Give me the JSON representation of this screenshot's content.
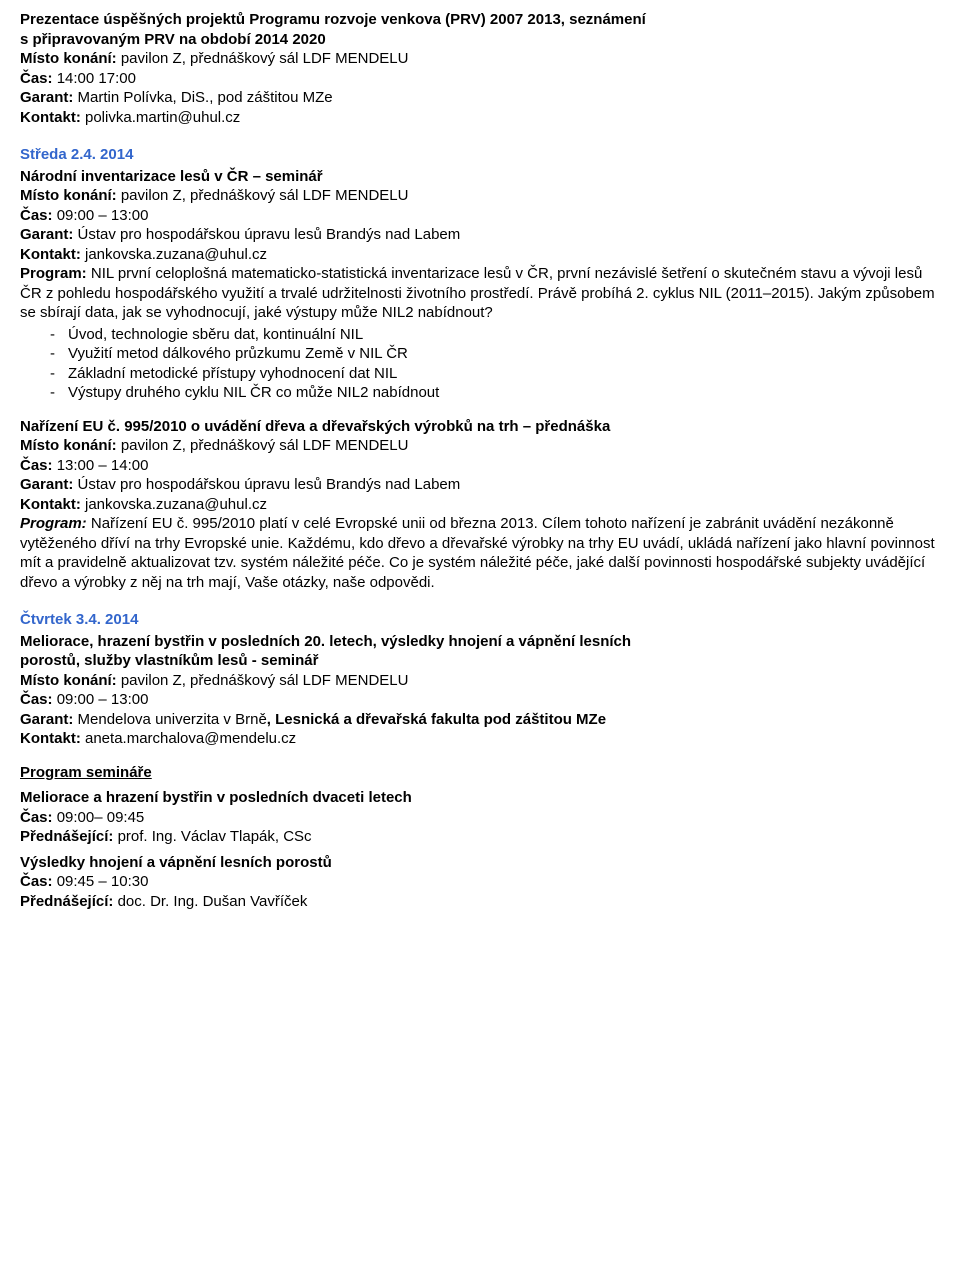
{
  "colors": {
    "heading": "#3366cc",
    "text": "#000000",
    "background": "#ffffff"
  },
  "labels": {
    "venue": "Místo konání:",
    "time": "Čas:",
    "garant": "Garant:",
    "kontakt": "Kontakt:",
    "program": "Program:",
    "program_italic": "Program:",
    "prednasejici": "Přednášející:"
  },
  "e1": {
    "title1": "Prezentace úspěšných projektů Programu rozvoje venkova (PRV) 2007 2013, seznámení",
    "title2": "s připravovaným PRV na období 2014 2020",
    "venue": "pavilon Z, přednáškový sál LDF MENDELU",
    "time": "14:00 17:00",
    "garant": "Martin Polívka, DiS., pod záštitou MZe",
    "kontakt": "polivka.martin@uhul.cz"
  },
  "day1": "Středa 2.4. 2014",
  "e2": {
    "title": "Národní inventarizace lesů v ČR – seminář",
    "venue": "pavilon Z, přednáškový sál LDF MENDELU",
    "time": "09:00 – 13:00",
    "garant": "Ústav pro hospodářskou úpravu lesů Brandýs nad Labem",
    "kontakt": "jankovska.zuzana@uhul.cz",
    "program": "NIL první celoplošná matematicko-statistická inventarizace lesů v ČR, první nezávislé šetření o skutečném stavu a vývoji lesů ČR z pohledu hospodářského využití a trvalé udržitelnosti životního prostředí. Právě probíhá 2. cyklus NIL (2011–2015). Jakým způsobem se sbírají data, jak se vyhodnocují, jaké výstupy může NIL2 nabídnout?",
    "bullets": [
      "Úvod, technologie sběru dat, kontinuální NIL",
      "Využití metod dálkového průzkumu Země v NIL ČR",
      "Základní metodické přístupy vyhodnocení dat NIL",
      "Výstupy druhého cyklu NIL ČR co může NIL2  nabídnout"
    ]
  },
  "e3": {
    "title": "Nařízení EU č. 995/2010 o uvádění dřeva a dřevařských výrobků na trh – přednáška",
    "venue": "pavilon Z, přednáškový sál LDF MENDELU",
    "time": "13:00 – 14:00",
    "garant": "Ústav pro hospodářskou úpravu lesů Brandýs nad Labem",
    "kontakt": "jankovska.zuzana@uhul.cz",
    "program": "Nařízení EU č. 995/2010 platí v celé Evropské unii od března 2013. Cílem tohoto nařízení je zabránit uvádění nezákonně vytěženého dříví na trhy Evropské unie. Každému, kdo dřevo a dřevařské výrobky na trhy EU uvádí, ukládá nařízení jako hlavní povinnost mít a pravidelně aktualizovat tzv. systém náležité péče. Co je systém náležité péče, jaké další povinnosti hospodářské subjekty uvádějící dřevo a výrobky z něj na trh mají, Vaše otázky, naše odpovědi."
  },
  "day2": "Čtvrtek 3.4. 2014",
  "e4": {
    "title1": "Meliorace, hrazení bystřin v posledních 20. letech, výsledky hnojení a vápnění lesních",
    "title2": "porostů, služby vlastníkům lesů - seminář",
    "venue": "pavilon Z, přednáškový sál LDF MENDELU",
    "time": "09:00 – 13:00",
    "garant_part1": "Mendelova univerzita v Brně",
    "garant_part2": ", Lesnická a dřevařská fakulta pod záštitou MZe",
    "kontakt": "aneta.marchalova@mendelu.cz"
  },
  "program_seminare": "Program semináře",
  "s1": {
    "title": "Meliorace a hrazení bystřin v posledních dvaceti letech",
    "time": "09:00– 09:45",
    "speaker": "prof. Ing. Václav Tlapák, CSc"
  },
  "s2": {
    "title": "Výsledky hnojení a vápnění lesních porostů",
    "time": "09:45 – 10:30",
    "speaker": "doc. Dr. Ing. Dušan Vavříček"
  }
}
